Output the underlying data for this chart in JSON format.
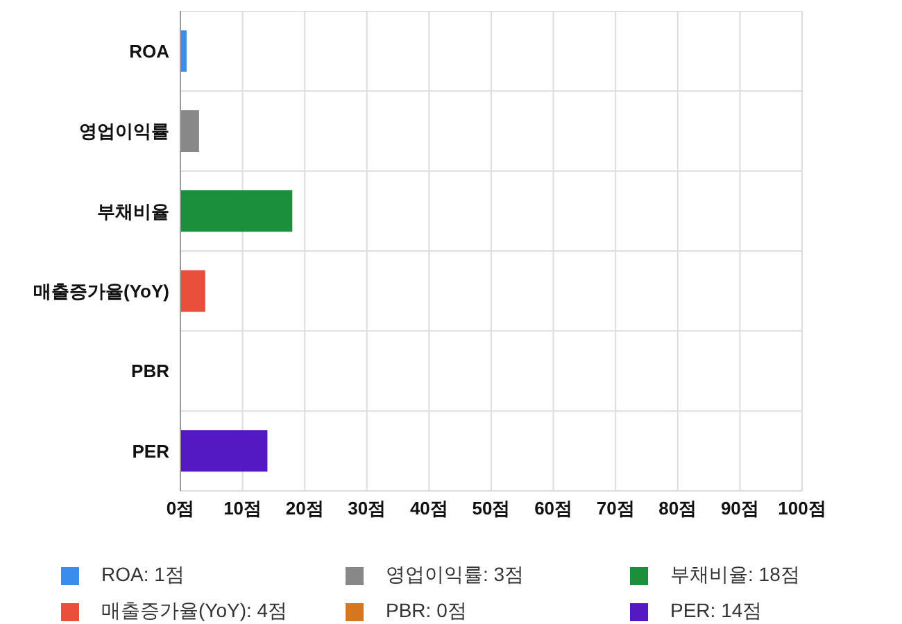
{
  "chart_data": {
    "type": "bar",
    "orientation": "horizontal",
    "stacked": true,
    "categories": [
      "ROA",
      "영업이익률",
      "부채비율",
      "매출증가율(YoY)",
      "PBR",
      "PER"
    ],
    "series": [
      {
        "name": "ROA: 1점",
        "color": "#3b8ded",
        "values": [
          1,
          null,
          null,
          null,
          null,
          null
        ]
      },
      {
        "name": "영업이익률: 3점",
        "color": "#888888",
        "values": [
          null,
          3,
          null,
          null,
          null,
          null
        ]
      },
      {
        "name": "부채비율: 18점",
        "color": "#1b8f3b",
        "values": [
          null,
          null,
          18,
          null,
          null,
          null
        ]
      },
      {
        "name": "매출증가율(YoY): 4점",
        "color": "#ea4f3b",
        "values": [
          null,
          null,
          null,
          4,
          null,
          null
        ]
      },
      {
        "name": "PBR: 0점",
        "color": "#d4771e",
        "values": [
          null,
          null,
          null,
          null,
          0,
          null
        ]
      },
      {
        "name": "PER: 14점",
        "color": "#5519c4",
        "values": [
          null,
          null,
          null,
          null,
          null,
          14
        ]
      }
    ],
    "xlim": [
      0,
      100
    ],
    "xticks": [
      {
        "value": 0,
        "label": "0점"
      },
      {
        "value": 10,
        "label": "10점"
      },
      {
        "value": 20,
        "label": "20점"
      },
      {
        "value": 30,
        "label": "30점"
      },
      {
        "value": 40,
        "label": "40점"
      },
      {
        "value": 50,
        "label": "50점"
      },
      {
        "value": 60,
        "label": "60점"
      },
      {
        "value": 70,
        "label": "70점"
      },
      {
        "value": 80,
        "label": "80점"
      },
      {
        "value": 90,
        "label": "90점"
      },
      {
        "value": 100,
        "label": "100점"
      }
    ],
    "grid": true,
    "legend": "bottom"
  }
}
